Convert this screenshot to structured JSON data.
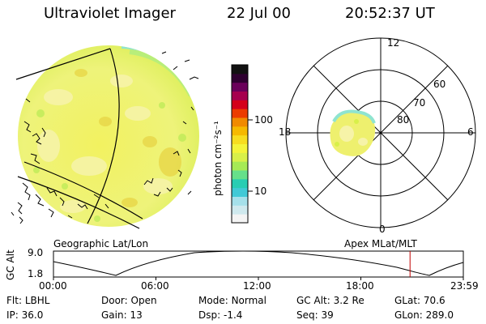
{
  "header": {
    "instrument": "Ultraviolet Imager",
    "date": "22 Jul 00",
    "time": "20:52:37 UT"
  },
  "colorbar": {
    "unit_label": "photon cm⁻²s⁻¹",
    "tick_100": "100",
    "tick_10": "10",
    "colors": [
      "#f4f4f4",
      "#cfe9ee",
      "#a5e0ea",
      "#41c9d6",
      "#28cdb3",
      "#66e08a",
      "#a6ea55",
      "#d8f049",
      "#f4f439",
      "#f7dd1f",
      "#f6b900",
      "#f18a00",
      "#ec3b00",
      "#d4001a",
      "#a6004f",
      "#6a005a",
      "#2e0030",
      "#111111"
    ]
  },
  "left_panel": {
    "caption": "Geographic Lat/Lon"
  },
  "polar_panel": {
    "caption": "Apex MLat/MLT",
    "mlt_labels": {
      "top": "12",
      "left": "18",
      "right": "6",
      "bottom": "0"
    },
    "lat_labels": [
      "60",
      "70",
      "80"
    ]
  },
  "altitude_plot": {
    "ylabel": "GC Alt",
    "ymax": "9.0",
    "ymin": "1.8",
    "time_ticks": [
      "00:00",
      "06:00",
      "12:00",
      "18:00",
      "23:59"
    ],
    "current_time_hours": 20.88
  },
  "footer": {
    "row1": [
      {
        "label": "Flt:",
        "value": "LBHL"
      },
      {
        "label": "Door:",
        "value": "Open"
      },
      {
        "label": "Mode:",
        "value": "Normal"
      },
      {
        "label": "GC Alt:",
        "value": "3.2 Re"
      },
      {
        "label": "GLat:",
        "value": "70.6"
      }
    ],
    "row2": [
      {
        "label": "IP:",
        "value": "36.0"
      },
      {
        "label": "Gain:",
        "value": "13"
      },
      {
        "label": "Dsp:",
        "value": "-1.4"
      },
      {
        "label": "Seq:",
        "value": "39"
      },
      {
        "label": "GLon:",
        "value": "289.0"
      }
    ]
  }
}
